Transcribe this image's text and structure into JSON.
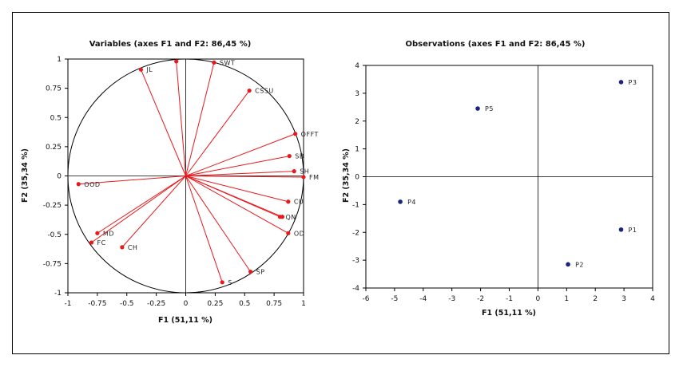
{
  "chart_data": [
    {
      "type": "scatter",
      "title": "Variables (axes F1 and F2: 86,45 %)",
      "xlabel": "F1 (51,11 %)",
      "ylabel": "F2 (35,34 %)",
      "xlim": [
        -1,
        1
      ],
      "ylim": [
        -1,
        1
      ],
      "xticks": [
        "-1",
        "-0.75",
        "-0.5",
        "-0.25",
        "0",
        "0.25",
        "0.5",
        "0.75",
        "1"
      ],
      "yticks": [
        "-1",
        "-0.75",
        "-0.5",
        "-0.25",
        "0",
        "0.25",
        "0.5",
        "0.75",
        "1"
      ],
      "unit_circle": true,
      "vector_color": "#e8191d",
      "points": [
        {
          "label": "JL",
          "x": -0.38,
          "y": 0.91
        },
        {
          "label": "",
          "x": -0.08,
          "y": 0.98
        },
        {
          "label": "SWT",
          "x": 0.24,
          "y": 0.97
        },
        {
          "label": "CSSU",
          "x": 0.54,
          "y": 0.73
        },
        {
          "label": "OFFT",
          "x": 0.93,
          "y": 0.36
        },
        {
          "label": "SB",
          "x": 0.88,
          "y": 0.17
        },
        {
          "label": "SH",
          "x": 0.92,
          "y": 0.04
        },
        {
          "label": "FM",
          "x": 1.0,
          "y": -0.01
        },
        {
          "label": "CU",
          "x": 0.87,
          "y": -0.22
        },
        {
          "label": "QN",
          "x": 0.8,
          "y": -0.35
        },
        {
          "label": "",
          "x": 0.82,
          "y": -0.35
        },
        {
          "label": "OD",
          "x": 0.87,
          "y": -0.49
        },
        {
          "label": "SP",
          "x": 0.55,
          "y": -0.82
        },
        {
          "label": "S",
          "x": 0.31,
          "y": -0.91
        },
        {
          "label": "CH",
          "x": -0.54,
          "y": -0.61
        },
        {
          "label": "MD",
          "x": -0.75,
          "y": -0.49
        },
        {
          "label": "FC",
          "x": -0.8,
          "y": -0.57
        },
        {
          "label": "OOD",
          "x": -0.91,
          "y": -0.07
        }
      ]
    },
    {
      "type": "scatter",
      "title": "Observations (axes F1 and F2: 86,45 %)",
      "xlabel": "F1 (51,11 %)",
      "ylabel": "F2 (35,34 %)",
      "xlim": [
        -6,
        4
      ],
      "ylim": [
        -4,
        4
      ],
      "xticks": [
        "-6",
        "-5",
        "-4",
        "-3",
        "-2",
        "-1",
        "0",
        "1",
        "2",
        "3",
        "4"
      ],
      "yticks": [
        "-4",
        "-3",
        "-2",
        "-1",
        "0",
        "1",
        "2",
        "3",
        "4"
      ],
      "point_color": "#1a237e",
      "points": [
        {
          "label": "P3",
          "x": 2.9,
          "y": 3.4
        },
        {
          "label": "P5",
          "x": -2.1,
          "y": 2.45
        },
        {
          "label": "P4",
          "x": -4.8,
          "y": -0.9
        },
        {
          "label": "P1",
          "x": 2.9,
          "y": -1.9
        },
        {
          "label": "P2",
          "x": 1.05,
          "y": -3.15
        }
      ]
    }
  ]
}
